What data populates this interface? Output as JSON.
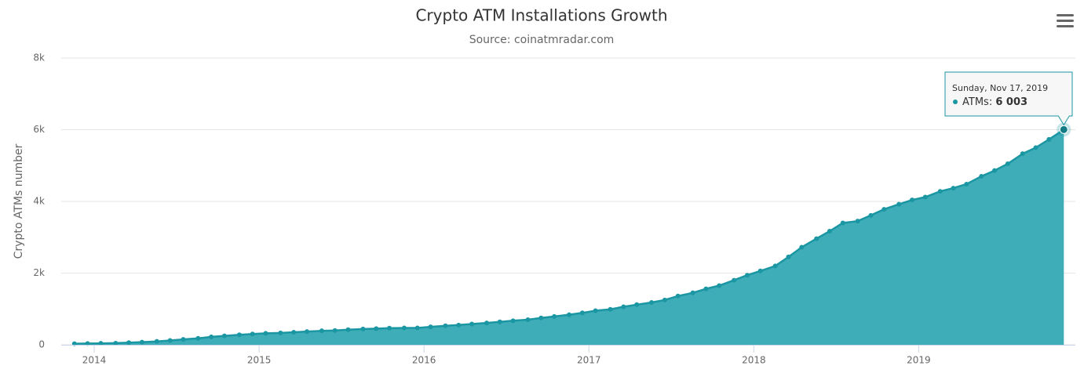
{
  "chart_data": {
    "type": "area",
    "title": "Crypto ATM Installations Growth",
    "subtitle": "Source: coinatmradar.com",
    "y_axis_label": "Crypto ATMs number",
    "x": [
      2013.88,
      2013.96,
      2014.04,
      2014.13,
      2014.21,
      2014.29,
      2014.38,
      2014.46,
      2014.54,
      2014.63,
      2014.71,
      2014.79,
      2014.88,
      2014.96,
      2015.04,
      2015.13,
      2015.21,
      2015.29,
      2015.38,
      2015.46,
      2015.54,
      2015.63,
      2015.71,
      2015.79,
      2015.88,
      2015.96,
      2016.04,
      2016.13,
      2016.21,
      2016.29,
      2016.38,
      2016.46,
      2016.54,
      2016.63,
      2016.71,
      2016.79,
      2016.88,
      2016.96,
      2017.04,
      2017.13,
      2017.21,
      2017.29,
      2017.38,
      2017.46,
      2017.54,
      2017.63,
      2017.71,
      2017.79,
      2017.88,
      2017.96,
      2018.04,
      2018.13,
      2018.21,
      2018.29,
      2018.38,
      2018.46,
      2018.54,
      2018.63,
      2018.71,
      2018.79,
      2018.88,
      2018.96,
      2019.04,
      2019.13,
      2019.21,
      2019.29,
      2019.38,
      2019.46,
      2019.54,
      2019.63,
      2019.71,
      2019.79,
      2019.88
    ],
    "series": [
      {
        "name": "ATMs",
        "color": "#1b96a3",
        "fill": "#3fadb8",
        "values": [
          30,
          35,
          40,
          45,
          60,
          75,
          95,
          120,
          150,
          180,
          220,
          250,
          280,
          300,
          320,
          330,
          350,
          370,
          390,
          400,
          420,
          440,
          450,
          465,
          470,
          470,
          500,
          530,
          550,
          580,
          610,
          640,
          670,
          700,
          750,
          790,
          840,
          890,
          950,
          990,
          1060,
          1120,
          1180,
          1250,
          1360,
          1450,
          1560,
          1650,
          1800,
          1940,
          2060,
          2200,
          2450,
          2720,
          2960,
          3170,
          3400,
          3450,
          3610,
          3780,
          3920,
          4040,
          4120,
          4280,
          4370,
          4480,
          4700,
          4860,
          5050,
          5330,
          5500,
          5730,
          6003
        ]
      }
    ],
    "xlim": [
      2013.8,
      2019.95
    ],
    "xticks": [
      2014,
      2015,
      2016,
      2017,
      2018,
      2019
    ],
    "ylim": [
      0,
      8000
    ],
    "yticks": [
      0,
      {
        "value": 2000,
        "label": "2k"
      },
      {
        "value": 4000,
        "label": "4k"
      },
      {
        "value": 6000,
        "label": "6k"
      },
      {
        "value": 8000,
        "label": "8k"
      }
    ],
    "grid": true,
    "tooltip": {
      "title": "Sunday, Nov 17, 2019",
      "value_label": "6 003"
    }
  }
}
